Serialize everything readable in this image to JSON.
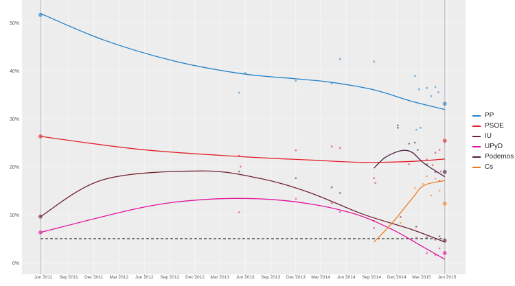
{
  "chart_data": {
    "type": "line",
    "title": "",
    "xlabel": "",
    "ylabel": "",
    "ylim": [
      0,
      55
    ],
    "xlim": [
      "2011-04-15",
      "2015-06-30"
    ],
    "grid": true,
    "legend_position": "right",
    "y_ticks": [
      0,
      10,
      20,
      30,
      40,
      50
    ],
    "y_tick_labels": [
      "0%",
      "10%",
      "20%",
      "30%",
      "40%",
      "50%"
    ],
    "x_ticks": [
      "2011-06-01",
      "2011-09-01",
      "2011-12-01",
      "2012-03-01",
      "2012-06-01",
      "2012-09-01",
      "2012-12-01",
      "2013-03-01",
      "2013-06-01",
      "2013-09-01",
      "2013-12-01",
      "2014-03-01",
      "2014-06-01",
      "2014-09-01",
      "2014-12-01",
      "2015-03-01",
      "2015-06-01"
    ],
    "x_tick_labels": [
      "Jun 2011",
      "Sep 2011",
      "Dec 2011",
      "Mar 2012",
      "Jun 2012",
      "Sep 2012",
      "Dec 2012",
      "Mar 2013",
      "Jun 2013",
      "Sep 2013",
      "Dec 2013",
      "Mar 2014",
      "Jun 2014",
      "Sep 2014",
      "Dec 2014",
      "Mar 2015",
      "Jun 2015"
    ],
    "election_dates": [
      "2011-05-22",
      "2015-05-24"
    ],
    "threshold": 5,
    "series": [
      {
        "name": "PP",
        "color": "#1f7fc8",
        "trend": [
          [
            "2011-05-22",
            51.9
          ],
          [
            "2012-01-05",
            46.4
          ],
          [
            "2012-09-10",
            42.1
          ],
          [
            "2013-05-15",
            39.4
          ],
          [
            "2013-12-01",
            38.3
          ],
          [
            "2014-04-05",
            37.6
          ],
          [
            "2014-09-10",
            36.0
          ],
          [
            "2015-01-25",
            33.6
          ],
          [
            "2015-05-24",
            31.9
          ]
        ],
        "polls": [
          [
            "2013-05-10",
            35.4
          ],
          [
            "2013-06-01",
            39.5
          ],
          [
            "2013-12-01",
            37.9
          ],
          [
            "2014-04-10",
            37.3
          ],
          [
            "2014-05-10",
            42.4
          ],
          [
            "2014-09-10",
            41.9
          ],
          [
            "2015-02-05",
            38.9
          ],
          [
            "2015-02-20",
            36.1
          ],
          [
            "2015-03-20",
            36.4
          ],
          [
            "2015-04-20",
            36.6
          ],
          [
            "2015-05-01",
            35.5
          ],
          [
            "2015-04-05",
            34.7
          ],
          [
            "2015-02-25",
            28.1
          ],
          [
            "2015-02-10",
            27.7
          ]
        ],
        "results": [
          [
            "2011-05-22",
            51.6
          ],
          [
            "2015-05-24",
            33.1
          ]
        ]
      },
      {
        "name": "PSOE",
        "color": "#e3202b",
        "trend": [
          [
            "2011-05-22",
            26.3
          ],
          [
            "2012-05-15",
            23.6
          ],
          [
            "2013-05-15",
            22.1
          ],
          [
            "2014-01-15",
            21.4
          ],
          [
            "2014-08-01",
            20.9
          ],
          [
            "2015-01-25",
            21.1
          ],
          [
            "2015-05-24",
            21.6
          ]
        ],
        "polls": [
          [
            "2013-05-10",
            22.3
          ],
          [
            "2013-12-01",
            23.4
          ],
          [
            "2014-04-10",
            24.2
          ],
          [
            "2014-05-10",
            23.9
          ],
          [
            "2014-09-10",
            17.6
          ],
          [
            "2014-09-15",
            16.6
          ],
          [
            "2015-01-15",
            20.5
          ],
          [
            "2015-03-20",
            21.5
          ],
          [
            "2015-04-20",
            22.9
          ],
          [
            "2015-04-10",
            20.3
          ],
          [
            "2015-05-05",
            23.5
          ],
          [
            "2015-05-10",
            19.0
          ]
        ],
        "results": [
          [
            "2011-05-22",
            26.3
          ],
          [
            "2015-05-24",
            25.4
          ]
        ]
      },
      {
        "name": "IU",
        "color": "#6e1f2b",
        "trend": [
          [
            "2011-05-22",
            9.6
          ],
          [
            "2012-01-05",
            17.3
          ],
          [
            "2012-12-20",
            19.1
          ],
          [
            "2013-07-20",
            17.6
          ],
          [
            "2014-01-15",
            14.7
          ],
          [
            "2014-08-01",
            10.1
          ],
          [
            "2015-01-25",
            6.9
          ],
          [
            "2015-05-24",
            4.3
          ]
        ],
        "polls": [
          [
            "2013-05-10",
            19.0
          ],
          [
            "2013-12-01",
            17.6
          ],
          [
            "2014-04-10",
            15.7
          ],
          [
            "2014-05-10",
            14.5
          ],
          [
            "2014-09-10",
            8.7
          ],
          [
            "2014-12-15",
            9.5
          ],
          [
            "2015-02-10",
            7.5
          ],
          [
            "2015-03-20",
            5.3
          ],
          [
            "2015-04-20",
            4.8
          ],
          [
            "2015-05-05",
            5.5
          ]
        ],
        "results": [
          [
            "2011-05-22",
            9.6
          ],
          [
            "2015-05-24",
            4.6
          ]
        ]
      },
      {
        "name": "UPyD",
        "color": "#e2119a",
        "trend": [
          [
            "2011-05-22",
            6.3
          ],
          [
            "2012-05-15",
            11.4
          ],
          [
            "2012-12-20",
            13.1
          ],
          [
            "2013-07-20",
            13.3
          ],
          [
            "2014-01-15",
            12.3
          ],
          [
            "2014-07-05",
            10.1
          ],
          [
            "2014-11-15",
            6.9
          ],
          [
            "2015-02-25",
            3.6
          ],
          [
            "2015-05-24",
            0.7
          ]
        ],
        "polls": [
          [
            "2013-05-10",
            10.5
          ],
          [
            "2013-05-15",
            20.0
          ],
          [
            "2013-12-01",
            13.3
          ],
          [
            "2014-04-10",
            12.4
          ],
          [
            "2014-05-10",
            10.6
          ],
          [
            "2014-09-10",
            7.2
          ],
          [
            "2015-02-10",
            5.2
          ],
          [
            "2015-03-20",
            2.0
          ],
          [
            "2015-04-20",
            1.6
          ],
          [
            "2015-05-05",
            3.0
          ]
        ],
        "results": [
          [
            "2011-05-22",
            6.3
          ],
          [
            "2015-05-24",
            2.0
          ]
        ]
      },
      {
        "name": "Podemos",
        "color": "#4a1c42",
        "trend": [
          [
            "2014-09-10",
            19.7
          ],
          [
            "2014-10-20",
            21.9
          ],
          [
            "2014-12-15",
            23.3
          ],
          [
            "2015-01-25",
            23.0
          ],
          [
            "2015-03-10",
            20.7
          ],
          [
            "2015-05-24",
            17.9
          ]
        ],
        "polls": [
          [
            "2014-12-05",
            28.1
          ],
          [
            "2014-12-05",
            28.6
          ],
          [
            "2015-01-15",
            24.8
          ],
          [
            "2015-02-05",
            25.0
          ],
          [
            "2015-02-15",
            23.5
          ],
          [
            "2015-03-20",
            20.5
          ],
          [
            "2015-04-20",
            18.9
          ],
          [
            "2015-05-05",
            17.0
          ]
        ],
        "results": [
          [
            "2015-05-24",
            18.9
          ]
        ]
      },
      {
        "name": "Cs",
        "color": "#f07b1e",
        "trend": [
          [
            "2014-09-10",
            4.3
          ],
          [
            "2014-11-15",
            8.3
          ],
          [
            "2015-01-25",
            13.3
          ],
          [
            "2015-03-10",
            16.1
          ],
          [
            "2015-05-24",
            17.1
          ]
        ],
        "polls": [
          [
            "2014-12-15",
            8.3
          ],
          [
            "2015-02-05",
            15.5
          ],
          [
            "2015-03-05",
            16.4
          ],
          [
            "2015-03-20",
            18.0
          ],
          [
            "2015-04-20",
            17.5
          ],
          [
            "2015-05-05",
            15.0
          ],
          [
            "2015-04-05",
            14.0
          ]
        ],
        "results": [
          [
            "2015-05-24",
            12.3
          ]
        ]
      }
    ]
  }
}
